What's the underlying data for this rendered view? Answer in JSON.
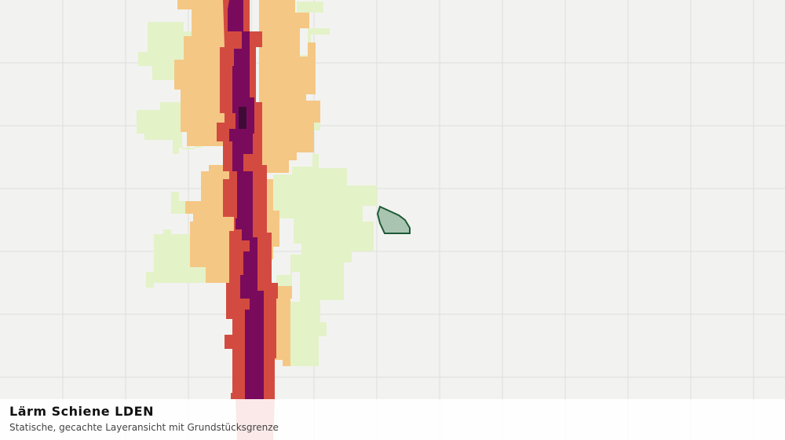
{
  "header": {
    "title": "Lärm Schiene LDEN",
    "subtitle": "Statische, gecachte Layeransicht mit Grundstücksgrenze"
  }
}
